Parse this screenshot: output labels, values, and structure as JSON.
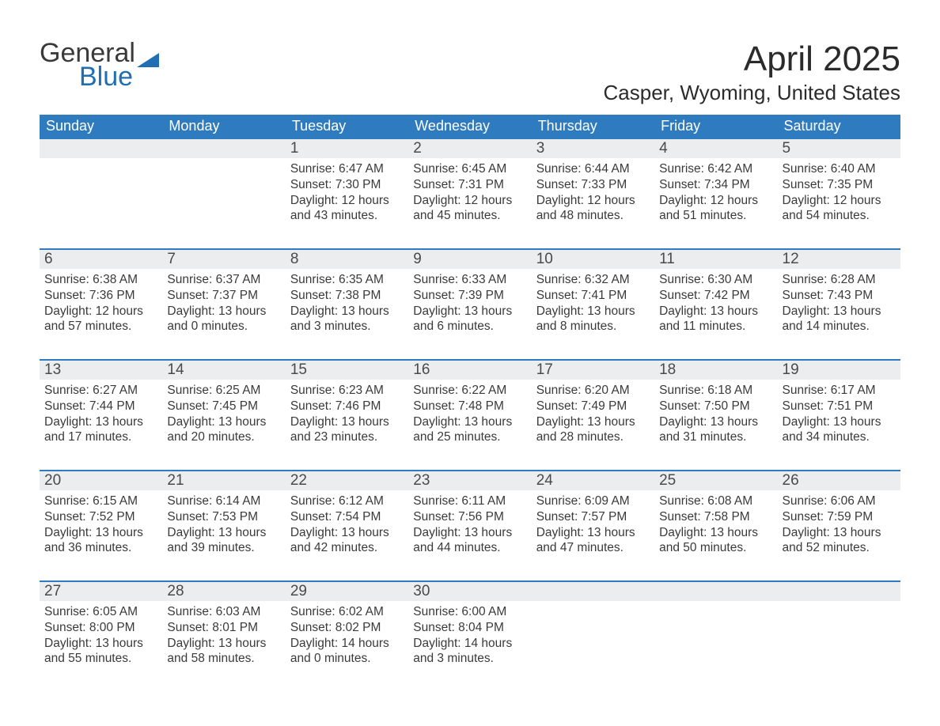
{
  "logo": {
    "line1": "General",
    "line2": "Blue"
  },
  "title": "April 2025",
  "location": "Casper, Wyoming, United States",
  "colors": {
    "header_bg": "#2f7bbf",
    "header_text": "#ffffff",
    "daynum_bg": "#ecedef",
    "daynum_border": "#2f7bbf",
    "body_text": "#3a3a3a",
    "logo_blue": "#1f6fb2"
  },
  "day_names": [
    "Sunday",
    "Monday",
    "Tuesday",
    "Wednesday",
    "Thursday",
    "Friday",
    "Saturday"
  ],
  "weeks": [
    [
      {
        "blank": true
      },
      {
        "blank": true
      },
      {
        "num": "1",
        "sunrise": "Sunrise: 6:47 AM",
        "sunset": "Sunset: 7:30 PM",
        "daylight": "Daylight: 12 hours and 43 minutes."
      },
      {
        "num": "2",
        "sunrise": "Sunrise: 6:45 AM",
        "sunset": "Sunset: 7:31 PM",
        "daylight": "Daylight: 12 hours and 45 minutes."
      },
      {
        "num": "3",
        "sunrise": "Sunrise: 6:44 AM",
        "sunset": "Sunset: 7:33 PM",
        "daylight": "Daylight: 12 hours and 48 minutes."
      },
      {
        "num": "4",
        "sunrise": "Sunrise: 6:42 AM",
        "sunset": "Sunset: 7:34 PM",
        "daylight": "Daylight: 12 hours and 51 minutes."
      },
      {
        "num": "5",
        "sunrise": "Sunrise: 6:40 AM",
        "sunset": "Sunset: 7:35 PM",
        "daylight": "Daylight: 12 hours and 54 minutes."
      }
    ],
    [
      {
        "num": "6",
        "sunrise": "Sunrise: 6:38 AM",
        "sunset": "Sunset: 7:36 PM",
        "daylight": "Daylight: 12 hours and 57 minutes."
      },
      {
        "num": "7",
        "sunrise": "Sunrise: 6:37 AM",
        "sunset": "Sunset: 7:37 PM",
        "daylight": "Daylight: 13 hours and 0 minutes."
      },
      {
        "num": "8",
        "sunrise": "Sunrise: 6:35 AM",
        "sunset": "Sunset: 7:38 PM",
        "daylight": "Daylight: 13 hours and 3 minutes."
      },
      {
        "num": "9",
        "sunrise": "Sunrise: 6:33 AM",
        "sunset": "Sunset: 7:39 PM",
        "daylight": "Daylight: 13 hours and 6 minutes."
      },
      {
        "num": "10",
        "sunrise": "Sunrise: 6:32 AM",
        "sunset": "Sunset: 7:41 PM",
        "daylight": "Daylight: 13 hours and 8 minutes."
      },
      {
        "num": "11",
        "sunrise": "Sunrise: 6:30 AM",
        "sunset": "Sunset: 7:42 PM",
        "daylight": "Daylight: 13 hours and 11 minutes."
      },
      {
        "num": "12",
        "sunrise": "Sunrise: 6:28 AM",
        "sunset": "Sunset: 7:43 PM",
        "daylight": "Daylight: 13 hours and 14 minutes."
      }
    ],
    [
      {
        "num": "13",
        "sunrise": "Sunrise: 6:27 AM",
        "sunset": "Sunset: 7:44 PM",
        "daylight": "Daylight: 13 hours and 17 minutes."
      },
      {
        "num": "14",
        "sunrise": "Sunrise: 6:25 AM",
        "sunset": "Sunset: 7:45 PM",
        "daylight": "Daylight: 13 hours and 20 minutes."
      },
      {
        "num": "15",
        "sunrise": "Sunrise: 6:23 AM",
        "sunset": "Sunset: 7:46 PM",
        "daylight": "Daylight: 13 hours and 23 minutes."
      },
      {
        "num": "16",
        "sunrise": "Sunrise: 6:22 AM",
        "sunset": "Sunset: 7:48 PM",
        "daylight": "Daylight: 13 hours and 25 minutes."
      },
      {
        "num": "17",
        "sunrise": "Sunrise: 6:20 AM",
        "sunset": "Sunset: 7:49 PM",
        "daylight": "Daylight: 13 hours and 28 minutes."
      },
      {
        "num": "18",
        "sunrise": "Sunrise: 6:18 AM",
        "sunset": "Sunset: 7:50 PM",
        "daylight": "Daylight: 13 hours and 31 minutes."
      },
      {
        "num": "19",
        "sunrise": "Sunrise: 6:17 AM",
        "sunset": "Sunset: 7:51 PM",
        "daylight": "Daylight: 13 hours and 34 minutes."
      }
    ],
    [
      {
        "num": "20",
        "sunrise": "Sunrise: 6:15 AM",
        "sunset": "Sunset: 7:52 PM",
        "daylight": "Daylight: 13 hours and 36 minutes."
      },
      {
        "num": "21",
        "sunrise": "Sunrise: 6:14 AM",
        "sunset": "Sunset: 7:53 PM",
        "daylight": "Daylight: 13 hours and 39 minutes."
      },
      {
        "num": "22",
        "sunrise": "Sunrise: 6:12 AM",
        "sunset": "Sunset: 7:54 PM",
        "daylight": "Daylight: 13 hours and 42 minutes."
      },
      {
        "num": "23",
        "sunrise": "Sunrise: 6:11 AM",
        "sunset": "Sunset: 7:56 PM",
        "daylight": "Daylight: 13 hours and 44 minutes."
      },
      {
        "num": "24",
        "sunrise": "Sunrise: 6:09 AM",
        "sunset": "Sunset: 7:57 PM",
        "daylight": "Daylight: 13 hours and 47 minutes."
      },
      {
        "num": "25",
        "sunrise": "Sunrise: 6:08 AM",
        "sunset": "Sunset: 7:58 PM",
        "daylight": "Daylight: 13 hours and 50 minutes."
      },
      {
        "num": "26",
        "sunrise": "Sunrise: 6:06 AM",
        "sunset": "Sunset: 7:59 PM",
        "daylight": "Daylight: 13 hours and 52 minutes."
      }
    ],
    [
      {
        "num": "27",
        "sunrise": "Sunrise: 6:05 AM",
        "sunset": "Sunset: 8:00 PM",
        "daylight": "Daylight: 13 hours and 55 minutes."
      },
      {
        "num": "28",
        "sunrise": "Sunrise: 6:03 AM",
        "sunset": "Sunset: 8:01 PM",
        "daylight": "Daylight: 13 hours and 58 minutes."
      },
      {
        "num": "29",
        "sunrise": "Sunrise: 6:02 AM",
        "sunset": "Sunset: 8:02 PM",
        "daylight": "Daylight: 14 hours and 0 minutes."
      },
      {
        "num": "30",
        "sunrise": "Sunrise: 6:00 AM",
        "sunset": "Sunset: 8:04 PM",
        "daylight": "Daylight: 14 hours and 3 minutes."
      },
      {
        "blank": true
      },
      {
        "blank": true
      },
      {
        "blank": true
      }
    ]
  ]
}
